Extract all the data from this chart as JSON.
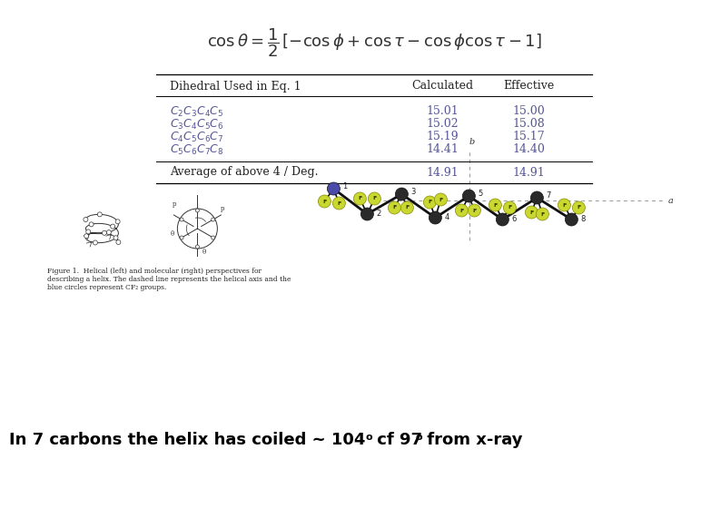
{
  "bg_color": "#ffffff",
  "table_header": [
    "Dihedral Used in Eq. 1",
    "Calculated",
    "Effective"
  ],
  "table_rows": [
    [
      "$C_2C_3C_4C_5$",
      "15.01",
      "15.00"
    ],
    [
      "$C_3C_4C_5C_6$",
      "15.02",
      "15.08"
    ],
    [
      "$C_4C_5C_6C_7$",
      "15.19",
      "15.17"
    ],
    [
      "$C_5C_6C_7C_8$",
      "14.41",
      "14.40"
    ]
  ],
  "avg_row": [
    "Average of above 4 / Deg.",
    "14.91",
    "14.91"
  ],
  "caption_text": "In 7 carbons the helix has coiled ~ 104",
  "caption_sup1": "o",
  "caption_mid": " cf 97",
  "caption_sup2": "o",
  "caption_end": " from x-ray",
  "caption_fontsize": 13,
  "fig_caption_lines": [
    "Figure 1.  Helical (left) and molecular (right) perspectives for",
    "describing a helix. The dashed line represents the helical axis and the",
    "blue circles represent CF₂ groups."
  ],
  "f_color": "#c8d830",
  "c_color": "#2a2a2a",
  "blue_color": "#4a4aaa",
  "chain_axis_color": "#aaaaaa"
}
